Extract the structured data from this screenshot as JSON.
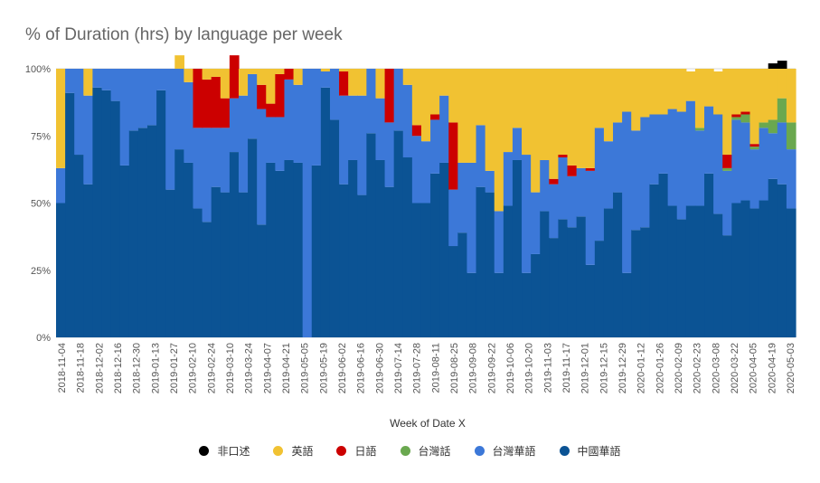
{
  "chart_data": {
    "type": "area",
    "stacked": "percent",
    "title": "% of Duration (hrs) by language per week",
    "xlabel": "Week of Date X",
    "ylabel": "",
    "ylim": [
      0,
      100
    ],
    "y_ticks": [
      "0%",
      "25%",
      "50%",
      "75%",
      "100%"
    ],
    "x_tick_labels": [
      "2018-11-04",
      "2018-11-18",
      "2018-12-02",
      "2018-12-16",
      "2018-12-30",
      "2019-01-13",
      "2019-01-27",
      "2019-02-10",
      "2019-02-24",
      "2019-03-10",
      "2019-03-24",
      "2019-04-07",
      "2019-04-21",
      "2019-05-05",
      "2019-05-19",
      "2019-06-02",
      "2019-06-16",
      "2019-06-30",
      "2019-07-14",
      "2019-07-28",
      "2019-08-11",
      "2019-08-25",
      "2019-09-08",
      "2019-09-22",
      "2019-10-06",
      "2019-10-20",
      "2019-11-03",
      "2019-11-17",
      "2019-12-01",
      "2019-12-15",
      "2019-12-29",
      "2020-01-12",
      "2020-01-26",
      "2020-02-09",
      "2020-02-23",
      "2020-03-08",
      "2020-03-22",
      "2020-04-05",
      "2020-04-19",
      "2020-05-03"
    ],
    "legend_position": "bottom",
    "grid": true,
    "series_colors": {
      "非口述": "#000000",
      "英語": "#f1c232",
      "日語": "#cc0000",
      "台灣話": "#6aa84f",
      "台灣華語": "#3c78d8",
      "中國華語": "#0b5394"
    },
    "series": [
      {
        "name": "中國華語",
        "values": [
          50,
          91,
          68,
          57,
          93,
          92,
          88,
          64,
          77,
          78,
          79,
          92,
          55,
          70,
          65,
          48,
          43,
          56,
          54,
          69,
          54,
          74,
          42,
          65,
          62,
          66,
          65,
          0,
          64,
          93,
          81,
          57,
          66,
          53,
          76,
          66,
          56,
          77,
          67,
          50,
          50,
          61,
          65,
          34,
          39,
          24,
          56,
          54,
          24,
          49,
          66,
          24,
          31,
          47,
          37,
          44,
          41,
          45,
          27,
          36,
          48,
          54,
          24,
          40,
          41,
          57,
          61,
          49,
          44,
          49,
          49,
          61,
          46,
          38,
          50,
          51,
          48,
          51,
          59,
          57,
          48
        ]
      },
      {
        "name": "台灣華語",
        "values": [
          13,
          9,
          32,
          33,
          7,
          8,
          12,
          36,
          23,
          22,
          21,
          8,
          45,
          30,
          30,
          30,
          35,
          22,
          24,
          20,
          36,
          24,
          43,
          17,
          20,
          30,
          29,
          100,
          36,
          6,
          19,
          33,
          24,
          37,
          24,
          23,
          24,
          23,
          27,
          25,
          23,
          20,
          25,
          21,
          26,
          41,
          23,
          8,
          23,
          20,
          12,
          44,
          23,
          19,
          20,
          23,
          19,
          18,
          35,
          42,
          25,
          26,
          60,
          37,
          41,
          26,
          22,
          36,
          40,
          39,
          28,
          25,
          37,
          24,
          31,
          29,
          22,
          27,
          17,
          23,
          22
        ]
      },
      {
        "name": "台灣話",
        "values": [
          0,
          0,
          0,
          0,
          0,
          0,
          0,
          0,
          0,
          0,
          0,
          0,
          0,
          0,
          0,
          0,
          0,
          0,
          0,
          0,
          0,
          0,
          0,
          0,
          0,
          0,
          0,
          0,
          0,
          0,
          0,
          0,
          0,
          0,
          0,
          0,
          0,
          0,
          0,
          0,
          0,
          0,
          0,
          0,
          0,
          0,
          0,
          0,
          0,
          0,
          0,
          0,
          0,
          0,
          0,
          0,
          0,
          0,
          0,
          0,
          0,
          0,
          0,
          0,
          0,
          0,
          0,
          0,
          0,
          0,
          1,
          0,
          0,
          1,
          1,
          3,
          1,
          2,
          5,
          9,
          10
        ]
      },
      {
        "name": "日語",
        "values": [
          0,
          0,
          0,
          0,
          0,
          0,
          0,
          0,
          0,
          0,
          0,
          0,
          0,
          0,
          0,
          22,
          18,
          19,
          11,
          16,
          0,
          0,
          9,
          5,
          16,
          4,
          0,
          0,
          0,
          0,
          0,
          9,
          0,
          0,
          0,
          0,
          20,
          0,
          0,
          4,
          0,
          2,
          0,
          25,
          0,
          0,
          0,
          0,
          0,
          0,
          0,
          0,
          0,
          0,
          2,
          1,
          4,
          0,
          1,
          0,
          0,
          0,
          0,
          0,
          0,
          0,
          0,
          0,
          0,
          0,
          0,
          0,
          0,
          5,
          1,
          1,
          1,
          0,
          0,
          0,
          0
        ]
      },
      {
        "name": "英語",
        "values": [
          37,
          0,
          0,
          10,
          0,
          0,
          0,
          0,
          0,
          0,
          0,
          0,
          0,
          5,
          5,
          0,
          4,
          3,
          11,
          0,
          10,
          2,
          6,
          13,
          2,
          0,
          6,
          0,
          0,
          1,
          0,
          1,
          10,
          10,
          0,
          11,
          0,
          0,
          6,
          21,
          27,
          17,
          10,
          20,
          35,
          35,
          21,
          38,
          53,
          31,
          22,
          32,
          46,
          34,
          41,
          32,
          36,
          37,
          37,
          22,
          27,
          20,
          16,
          23,
          18,
          17,
          17,
          15,
          16,
          11,
          22,
          14,
          16,
          32,
          17,
          16,
          28,
          20,
          19,
          11,
          20
        ]
      },
      {
        "name": "非口述",
        "values": [
          0,
          0,
          0,
          0,
          0,
          0,
          0,
          0,
          0,
          0,
          0,
          0,
          0,
          0,
          0,
          0,
          0,
          0,
          0,
          0,
          0,
          0,
          0,
          0,
          0,
          0,
          0,
          0,
          0,
          0,
          0,
          0,
          0,
          0,
          0,
          0,
          0,
          0,
          0,
          0,
          0,
          0,
          0,
          0,
          0,
          0,
          0,
          0,
          0,
          0,
          0,
          0,
          0,
          0,
          0,
          0,
          0,
          0,
          0,
          0,
          0,
          0,
          0,
          0,
          0,
          0,
          0,
          0,
          0,
          0,
          0,
          0,
          0,
          0,
          0,
          0,
          0,
          0,
          2,
          3,
          0
        ]
      }
    ]
  },
  "legend_order": [
    "非口述",
    "英語",
    "日語",
    "台灣話",
    "台灣華語",
    "中國華語"
  ]
}
